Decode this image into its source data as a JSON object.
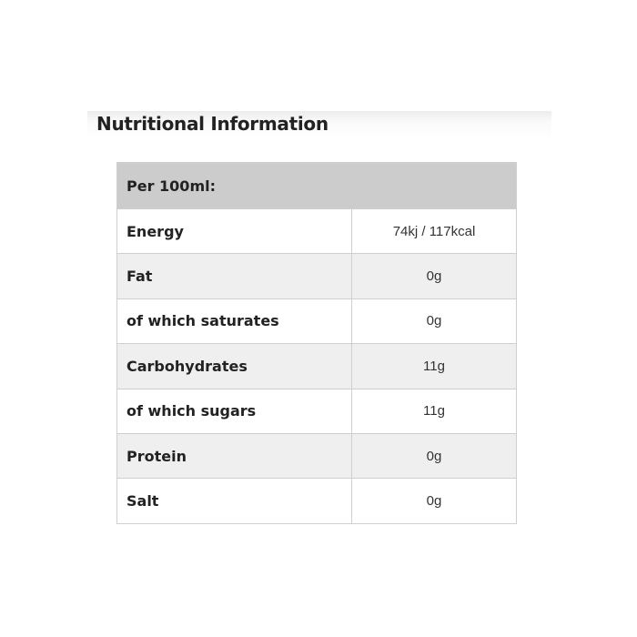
{
  "title": "Nutritional Information",
  "table": {
    "header": "Per 100ml:",
    "rows": [
      {
        "label": "Energy",
        "value": "74kj / 117kcal"
      },
      {
        "label": "Fat",
        "value": "0g"
      },
      {
        "label": "of which saturates",
        "value": "0g"
      },
      {
        "label": "Carbohydrates",
        "value": "11g"
      },
      {
        "label": "of which sugars",
        "value": "11g"
      },
      {
        "label": "Protein",
        "value": "0g"
      },
      {
        "label": "Salt",
        "value": "0g"
      }
    ]
  }
}
